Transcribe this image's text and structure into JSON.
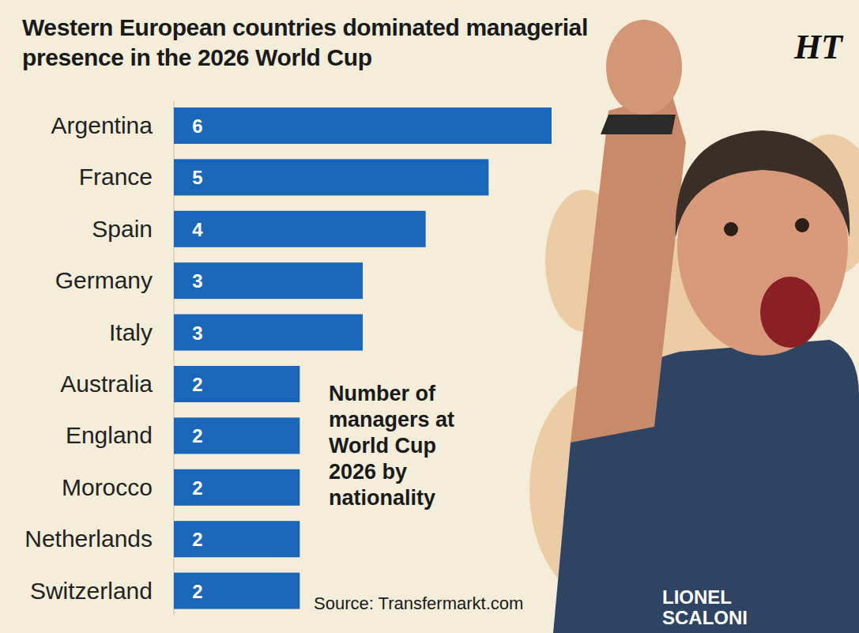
{
  "chart_data": {
    "type": "bar",
    "orientation": "horizontal",
    "title": "Western European countries dominated managerial presence in the 2026 World Cup",
    "categories": [
      "Argentina",
      "France",
      "Spain",
      "Germany",
      "Italy",
      "Australia",
      "England",
      "Morocco",
      "Netherlands",
      "Switzerland"
    ],
    "values": [
      6,
      5,
      4,
      3,
      3,
      2,
      2,
      2,
      2,
      2
    ],
    "color": "#1a66b8",
    "xlim": [
      0,
      6
    ],
    "data_labels": true,
    "tick_labels": "y",
    "annotations": [
      "Number of managers at World Cup 2026 by nationality",
      "Source: Transfermarkt.com",
      "HT",
      "LIONEL SCALONI"
    ]
  }
}
